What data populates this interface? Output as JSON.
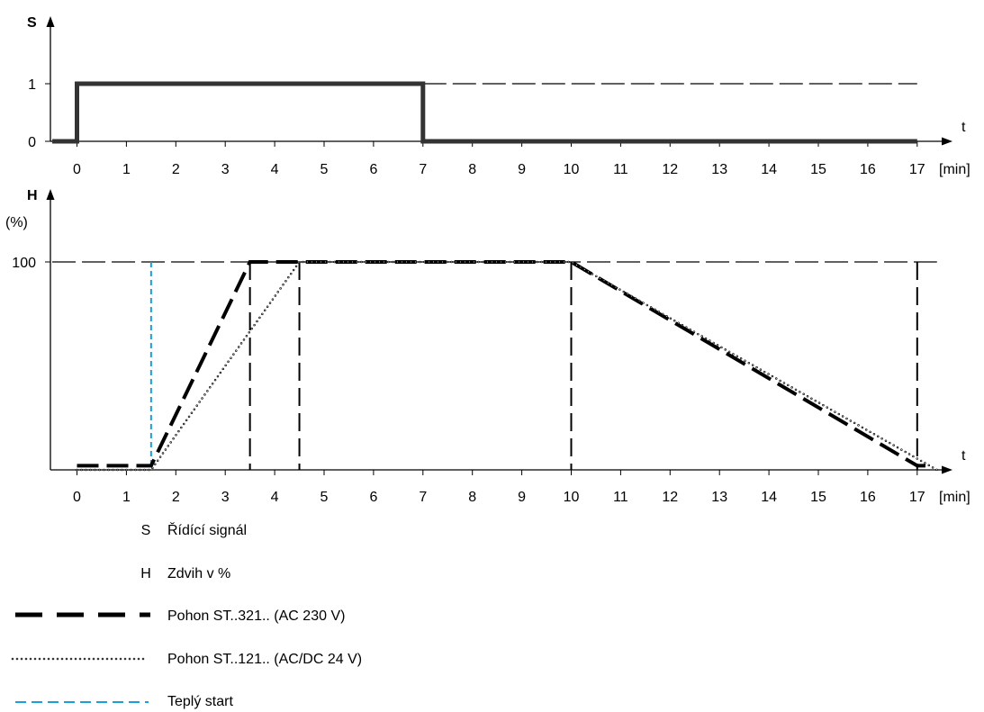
{
  "chart_data": [
    {
      "type": "line",
      "y_axis_label": "S",
      "x_axis_label": "t",
      "x_unit": "[min]",
      "x_ticks": [
        0,
        1,
        2,
        3,
        4,
        5,
        6,
        7,
        8,
        9,
        10,
        11,
        12,
        13,
        14,
        15,
        16,
        17
      ],
      "y_ticks": [
        0,
        1
      ],
      "xlim": [
        -0.5,
        17.5
      ],
      "ylim": [
        0,
        1
      ],
      "series": [
        {
          "key": "signal",
          "style": "solid-thick",
          "color": "#333333",
          "x": [
            -0.5,
            0,
            0,
            7,
            7,
            17
          ],
          "y": [
            0,
            0,
            1,
            1,
            0,
            0
          ]
        }
      ],
      "reference_lines": [
        {
          "y": 1,
          "x_from": 7,
          "x_to": 17,
          "style": "long-dash"
        }
      ]
    },
    {
      "type": "line",
      "y_axis_label": "H",
      "y_unit": "(%)",
      "x_axis_label": "t",
      "x_unit": "[min]",
      "x_ticks": [
        0,
        1,
        2,
        3,
        4,
        5,
        6,
        7,
        8,
        9,
        10,
        11,
        12,
        13,
        14,
        15,
        16,
        17
      ],
      "y_ticks": [
        100
      ],
      "xlim": [
        -0.5,
        17.5
      ],
      "ylim": [
        0,
        100
      ],
      "series": [
        {
          "key": "st321",
          "style": "thick-dash",
          "color": "#000000",
          "x": [
            0,
            1.5,
            3.5,
            10,
            17,
            17.25
          ],
          "y": [
            2,
            2,
            100,
            100,
            2,
            2
          ]
        },
        {
          "key": "st121",
          "style": "circles",
          "color": "#000000",
          "x": [
            0,
            1.5,
            4.5,
            10,
            17.4
          ],
          "y": [
            0,
            0,
            100,
            100,
            0
          ]
        }
      ],
      "reference_lines": [
        {
          "y": 100,
          "x_from": -0.5,
          "x_to": 17.4,
          "style": "long-dash"
        },
        {
          "x": 1.5,
          "style": "cyan-dash",
          "color": "#1a9fd6"
        },
        {
          "x": 3.5,
          "style": "long-dash"
        },
        {
          "x": 4.5,
          "style": "long-dash"
        },
        {
          "x": 10,
          "style": "long-dash"
        },
        {
          "x": 17,
          "style": "long-dash"
        }
      ]
    }
  ],
  "legend": [
    {
      "symbol": "S",
      "label": "Řídící signál"
    },
    {
      "symbol": "H",
      "label": "Zdvih v %"
    },
    {
      "symbol": "thick-dash",
      "label": "Pohon ST..321.. (AC 230 V)"
    },
    {
      "symbol": "circles",
      "label": "Pohon ST..121.. (AC/DC 24 V)"
    },
    {
      "symbol": "cyan-dash",
      "label": "Teplý start",
      "color": "#1a9fd6"
    }
  ]
}
